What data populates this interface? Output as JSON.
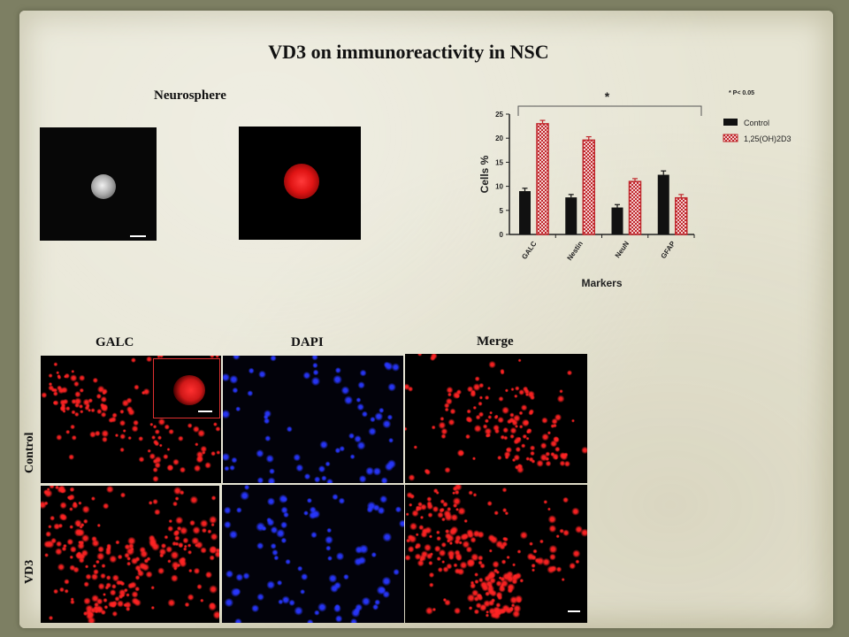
{
  "slide": {
    "title": "VD3 on immunoreactivity in NSC",
    "neurosphere_label": "Neurosphere",
    "column_labels": [
      "GALC",
      "DAPI",
      "Merge"
    ],
    "row_labels": [
      "Control",
      "VD3"
    ]
  },
  "colors": {
    "background": "#7d7f63",
    "paper": "#e7e5d4",
    "control": "#111111",
    "vd3": "#c0282d",
    "galc_stain": "#ff2020",
    "dapi_stain": "#1a2bff"
  },
  "chart_data": {
    "type": "bar",
    "categories": [
      "GALC",
      "Nestin",
      "NeuN",
      "GFAP"
    ],
    "series": [
      {
        "name": "Control",
        "values": [
          9,
          7.7,
          5.6,
          12.4
        ],
        "errors": [
          0.6,
          0.6,
          0.6,
          0.8
        ]
      },
      {
        "name": "1,25(OH)2D3",
        "values": [
          23,
          19.6,
          11,
          7.6
        ],
        "errors": [
          0.7,
          0.7,
          0.6,
          0.7
        ]
      }
    ],
    "xlabel": "Markers",
    "ylabel": "Cells %",
    "ylim": [
      0,
      25
    ],
    "yticks": [
      0,
      5,
      10,
      15,
      20,
      25
    ],
    "significance": {
      "marker": "*",
      "note": "* P< 0.05"
    },
    "legend_position": "top-right",
    "grid": false
  }
}
